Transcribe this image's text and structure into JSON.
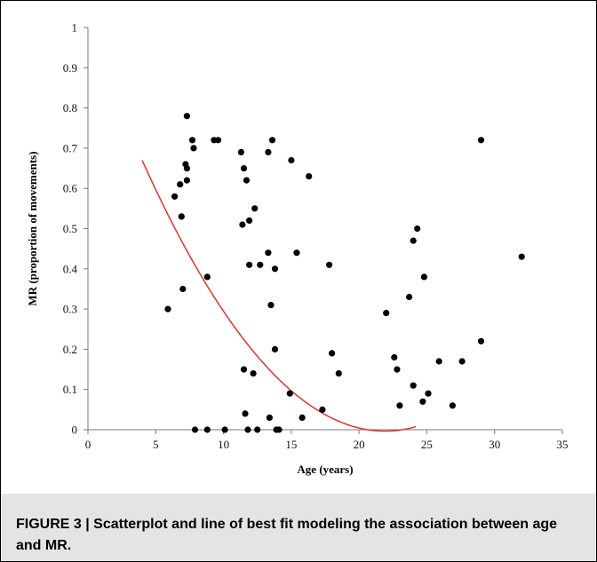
{
  "caption": "FIGURE 3 | Scatterplot and line of best fit modeling the association between age and MR.",
  "chart_data": {
    "type": "scatter",
    "title": "",
    "xlabel": "Age (years)",
    "ylabel": "MR (proportion of movements)",
    "xlim": [
      0,
      35
    ],
    "ylim": [
      0,
      1
    ],
    "xticks": [
      0,
      5,
      10,
      15,
      20,
      25,
      30,
      35
    ],
    "yticks": [
      0,
      0.1,
      0.2,
      0.3,
      0.4,
      0.5,
      0.6,
      0.7,
      0.8,
      0.9,
      1
    ],
    "grid": false,
    "legend": "none",
    "colors": {
      "points": "#000000",
      "fit_line": "#e8261c"
    },
    "points": [
      [
        5.9,
        0.3
      ],
      [
        6.4,
        0.58
      ],
      [
        6.8,
        0.61
      ],
      [
        6.9,
        0.53
      ],
      [
        7.0,
        0.35
      ],
      [
        7.2,
        0.66
      ],
      [
        7.3,
        0.62
      ],
      [
        7.3,
        0.78
      ],
      [
        7.3,
        0.65
      ],
      [
        7.7,
        0.72
      ],
      [
        7.8,
        0.7
      ],
      [
        7.9,
        0.0
      ],
      [
        8.8,
        0.38
      ],
      [
        8.8,
        0.0
      ],
      [
        9.3,
        0.72
      ],
      [
        9.6,
        0.72
      ],
      [
        10.1,
        0.0
      ],
      [
        11.3,
        0.69
      ],
      [
        11.4,
        0.51
      ],
      [
        11.5,
        0.65
      ],
      [
        11.5,
        0.15
      ],
      [
        11.6,
        0.04
      ],
      [
        11.7,
        0.62
      ],
      [
        11.8,
        0.0
      ],
      [
        11.9,
        0.41
      ],
      [
        11.9,
        0.52
      ],
      [
        12.2,
        0.14
      ],
      [
        12.3,
        0.55
      ],
      [
        12.5,
        0.0
      ],
      [
        12.7,
        0.41
      ],
      [
        13.3,
        0.69
      ],
      [
        13.3,
        0.44
      ],
      [
        13.4,
        0.03
      ],
      [
        13.5,
        0.31
      ],
      [
        13.6,
        0.72
      ],
      [
        13.8,
        0.4
      ],
      [
        13.8,
        0.2
      ],
      [
        13.9,
        0.0
      ],
      [
        14.1,
        0.0
      ],
      [
        14.9,
        0.09
      ],
      [
        15.0,
        0.67
      ],
      [
        15.4,
        0.44
      ],
      [
        15.8,
        0.03
      ],
      [
        16.3,
        0.63
      ],
      [
        17.3,
        0.05
      ],
      [
        17.8,
        0.41
      ],
      [
        18.0,
        0.19
      ],
      [
        18.5,
        0.14
      ],
      [
        22.0,
        0.29
      ],
      [
        22.6,
        0.18
      ],
      [
        22.8,
        0.15
      ],
      [
        23.0,
        0.06
      ],
      [
        23.7,
        0.33
      ],
      [
        24.0,
        0.47
      ],
      [
        24.0,
        0.11
      ],
      [
        24.3,
        0.5
      ],
      [
        24.7,
        0.07
      ],
      [
        24.8,
        0.38
      ],
      [
        25.1,
        0.09
      ],
      [
        25.9,
        0.17
      ],
      [
        26.9,
        0.06
      ],
      [
        27.6,
        0.17
      ],
      [
        29.0,
        0.72
      ],
      [
        29.0,
        0.22
      ],
      [
        32.0,
        0.43
      ]
    ],
    "fit_line": {
      "type": "quadratic",
      "coefficients": {
        "a": 0.002098,
        "b": -0.09197,
        "c": 1.0044
      },
      "x_range": [
        4,
        24.2
      ]
    }
  }
}
